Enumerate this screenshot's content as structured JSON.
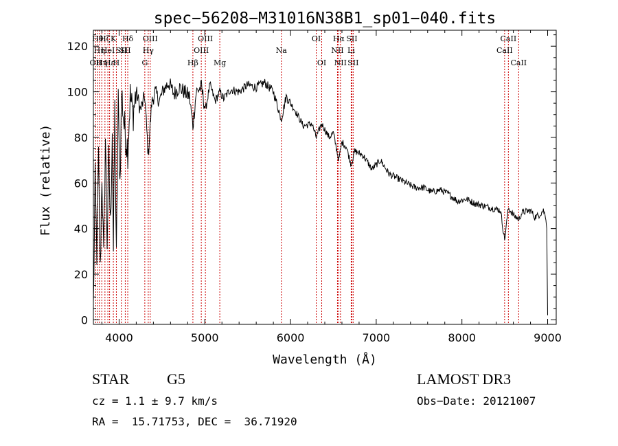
{
  "chart_data": {
    "type": "line",
    "title": "spec−56208−M31016N38B1_sp01−040.fits",
    "xlabel": "Wavelength (Å)",
    "ylabel": "Flux (relative)",
    "xlim": [
      3700,
      9100
    ],
    "ylim": [
      -2,
      127
    ],
    "x_ticks": [
      4000,
      5000,
      6000,
      7000,
      8000,
      9000
    ],
    "y_ticks": [
      0,
      20,
      40,
      60,
      80,
      100,
      120
    ],
    "line_color": "#000000",
    "marker_color": "#cc0000",
    "series": [
      {
        "name": "spectrum",
        "x": [
          3700,
          3720,
          3740,
          3760,
          3780,
          3800,
          3820,
          3840,
          3860,
          3880,
          3900,
          3920,
          3933,
          3950,
          3968,
          3990,
          4010,
          4030,
          4060,
          4101,
          4130,
          4160,
          4200,
          4250,
          4300,
          4340,
          4380,
          4420,
          4470,
          4520,
          4580,
          4640,
          4700,
          4760,
          4820,
          4861,
          4900,
          4960,
          5007,
          5060,
          5120,
          5175,
          5220,
          5300,
          5400,
          5500,
          5600,
          5700,
          5800,
          5893,
          5950,
          6050,
          6150,
          6250,
          6300,
          6364,
          6450,
          6500,
          6563,
          6600,
          6650,
          6708,
          6750,
          6850,
          6950,
          7050,
          7150,
          7250,
          7350,
          7450,
          7550,
          7650,
          7750,
          7850,
          7950,
          8050,
          8150,
          8250,
          8350,
          8450,
          8498,
          8542,
          8600,
          8662,
          8700,
          8800,
          8850,
          8900,
          8950,
          8980,
          8990,
          9000
        ],
        "y": [
          5,
          60,
          30,
          70,
          20,
          65,
          25,
          80,
          35,
          70,
          40,
          85,
          30,
          92,
          25,
          95,
          60,
          100,
          85,
          75,
          98,
          90,
          100,
          92,
          98,
          72,
          95,
          100,
          96,
          101,
          104,
          99,
          102,
          100,
          98,
          85,
          100,
          102,
          92,
          103,
          96,
          100,
          97,
          101,
          100,
          103,
          102,
          104,
          100,
          88,
          98,
          92,
          85,
          86,
          80,
          86,
          80,
          82,
          70,
          78,
          76,
          68,
          74,
          72,
          66,
          70,
          64,
          62,
          60,
          58,
          58,
          56,
          57,
          55,
          52,
          53,
          51,
          50,
          49,
          48,
          35,
          49,
          46,
          44,
          47,
          48,
          45,
          46,
          48,
          45,
          40,
          2
        ]
      }
    ],
    "line_markers": [
      {
        "x": 3727,
        "label": "OII",
        "row": 2
      },
      {
        "x": 3750,
        "label": "Hθ",
        "row": 0
      },
      {
        "x": 3770,
        "label": "Hη",
        "row": 1
      },
      {
        "x": 3798,
        "label": "Hη",
        "row": 2
      },
      {
        "x": 3835,
        "label": "Hζ",
        "row": 0
      },
      {
        "x": 3869,
        "label": "HeI",
        "row": 1
      },
      {
        "x": 3889,
        "label": "Hε",
        "row": 2
      },
      {
        "x": 3933,
        "label": "K",
        "row": 0
      },
      {
        "x": 3968,
        "label": "H",
        "row": 2
      },
      {
        "x": 4026,
        "label": "SII",
        "row": 1
      },
      {
        "x": 4072,
        "label": "SII",
        "row": 1
      },
      {
        "x": 4101,
        "label": "Hδ",
        "row": 0
      },
      {
        "x": 4300,
        "label": "G",
        "row": 2
      },
      {
        "x": 4340,
        "label": "Hγ",
        "row": 1
      },
      {
        "x": 4363,
        "label": "OIII",
        "row": 0
      },
      {
        "x": 4861,
        "label": "Hβ",
        "row": 2
      },
      {
        "x": 4959,
        "label": "OIII",
        "row": 1
      },
      {
        "x": 5007,
        "label": "OIII",
        "row": 0
      },
      {
        "x": 5175,
        "label": "Mg",
        "row": 2
      },
      {
        "x": 5893,
        "label": "Na",
        "row": 1
      },
      {
        "x": 6300,
        "label": "OI",
        "row": 0
      },
      {
        "x": 6364,
        "label": "OI",
        "row": 2
      },
      {
        "x": 6548,
        "label": "NII",
        "row": 1
      },
      {
        "x": 6563,
        "label": "Hα",
        "row": 0
      },
      {
        "x": 6583,
        "label": "NII",
        "row": 2
      },
      {
        "x": 6708,
        "label": "Li",
        "row": 1
      },
      {
        "x": 6716,
        "label": "SII",
        "row": 0
      },
      {
        "x": 6731,
        "label": "SII",
        "row": 2
      },
      {
        "x": 8498,
        "label": "CaII",
        "row": 1
      },
      {
        "x": 8542,
        "label": "CaII",
        "row": 0
      },
      {
        "x": 8662,
        "label": "CaII",
        "row": 2
      }
    ]
  },
  "info": {
    "class_label": "STAR",
    "subclass": "G5",
    "survey": "LAMOST DR3",
    "cz": "cz = 1.1 ± 9.7 km/s",
    "obs_date": "Obs−Date: 20121007",
    "coords": "RA =  15.71753, DEC =  36.71920"
  }
}
